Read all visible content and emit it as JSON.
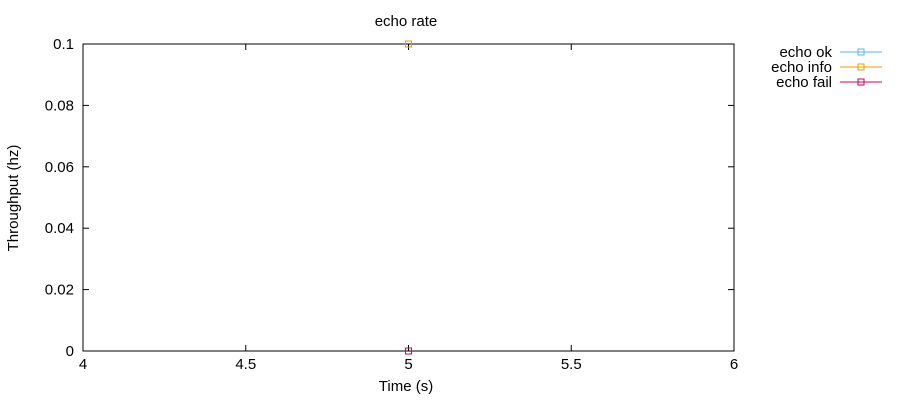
{
  "chart_data": {
    "type": "line",
    "title": "echo rate",
    "xlabel": "Time (s)",
    "ylabel": "Throughput (hz)",
    "xlim": [
      4,
      6
    ],
    "ylim": [
      0,
      0.1
    ],
    "x_ticks": [
      4,
      4.5,
      5,
      5.5,
      6
    ],
    "x_tick_labels": [
      "4",
      "4.5",
      "5",
      "5.5",
      "6"
    ],
    "y_ticks": [
      0,
      0.02,
      0.04,
      0.06,
      0.08,
      0.1
    ],
    "y_tick_labels": [
      "0",
      "0.02",
      "0.04",
      "0.06",
      "0.08",
      "0.1"
    ],
    "grid": false,
    "legend_position": "outside-right-top",
    "series": [
      {
        "name": "echo ok",
        "color": "#56b4e9",
        "marker": "open-square",
        "x": [
          5
        ],
        "y": [
          0
        ]
      },
      {
        "name": "echo info",
        "color": "#e69f00",
        "marker": "open-square",
        "x": [
          5
        ],
        "y": [
          0.1
        ]
      },
      {
        "name": "echo fail",
        "color": "#cc0066",
        "marker": "open-square",
        "x": [
          5
        ],
        "y": [
          0
        ]
      }
    ]
  }
}
